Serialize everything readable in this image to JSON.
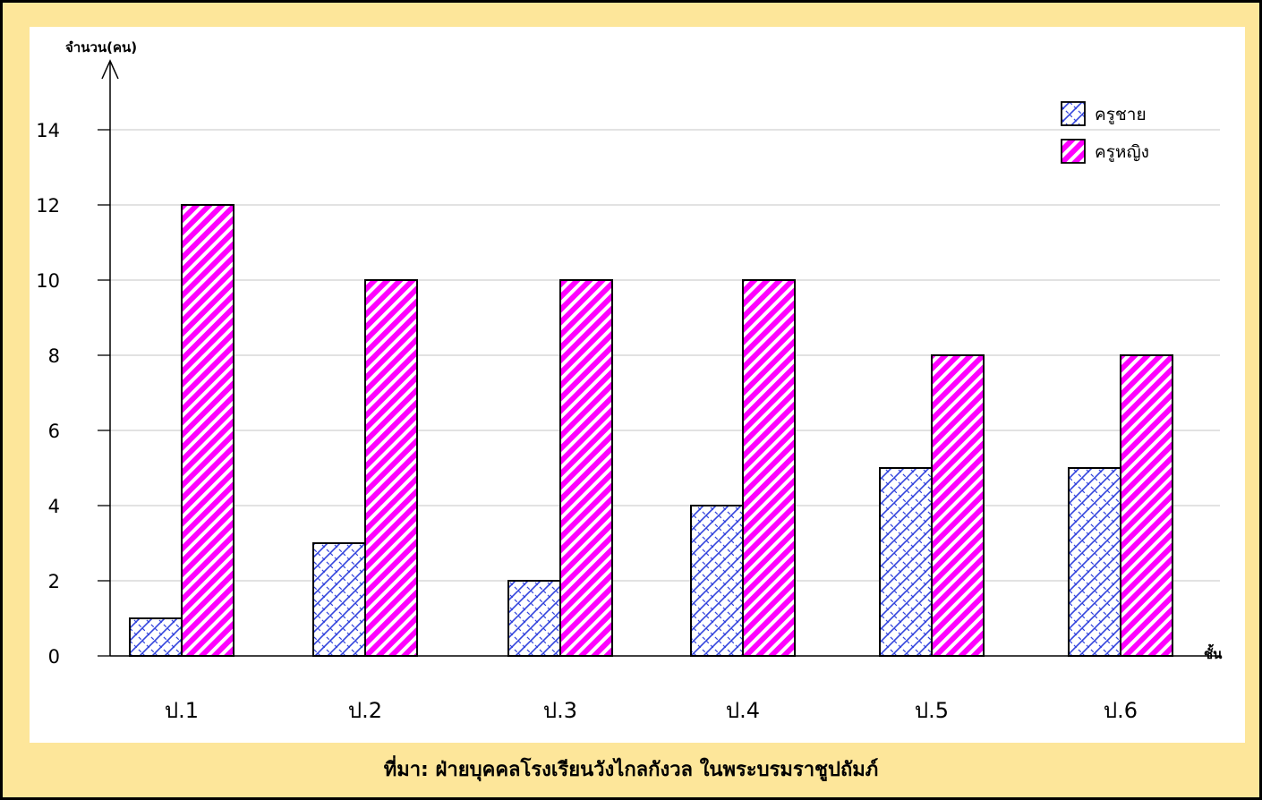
{
  "chart_data": {
    "type": "bar",
    "title": "",
    "ylabel": "จำนวน(คน)",
    "xlabel": "ชั้น",
    "categories": [
      "ป.1",
      "ป.2",
      "ป.3",
      "ป.4",
      "ป.5",
      "ป.6"
    ],
    "series": [
      {
        "name": "ครูชาย",
        "values": [
          1,
          3,
          2,
          4,
          5,
          5
        ],
        "color": "#3344dd",
        "pattern": "crosshatch"
      },
      {
        "name": "ครูหญิง",
        "values": [
          12,
          10,
          10,
          10,
          8,
          8
        ],
        "color": "#ff00ff",
        "pattern": "diagonal-stripes"
      }
    ],
    "ylim": [
      0,
      14
    ],
    "yticks": [
      0,
      2,
      4,
      6,
      8,
      10,
      12,
      14
    ],
    "grid": true,
    "legend_position": "top-right"
  },
  "source": "ที่มา: ฝ่ายบุคคลโรงเรียนวังไกลกังวล ในพระบรมราชูปถัมภ์",
  "colors": {
    "background": "#fde69a",
    "panel": "#ffffff",
    "gridline": "#d0d0d0"
  }
}
